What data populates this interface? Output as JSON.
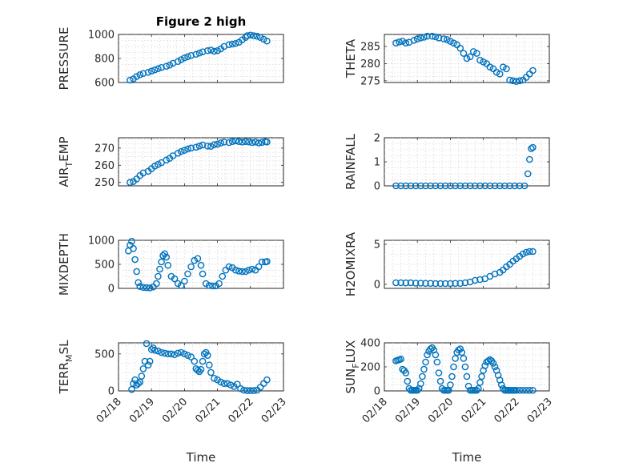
{
  "chart_data": [
    {
      "type": "scatter",
      "id": "pressure",
      "title": "Figure 2 high",
      "ylabel": "PRESSURE",
      "ylabel_sub": "",
      "xlabel": "",
      "ylim": [
        600,
        1000
      ],
      "yticks": [
        600,
        800,
        1000
      ],
      "yticklabels": [
        "600",
        "800",
        "1000"
      ],
      "xlim": [
        0,
        5
      ],
      "xticks": [
        0,
        1,
        2,
        3,
        4,
        5
      ],
      "xticklabels": [],
      "series": [
        {
          "x": [
            0.35,
            0.45,
            0.55,
            0.65,
            0.75,
            0.9,
            1.0,
            1.1,
            1.2,
            1.3,
            1.45,
            1.55,
            1.65,
            1.8,
            1.9,
            2.0,
            2.1,
            2.2,
            2.35,
            2.45,
            2.55,
            2.7,
            2.8,
            2.9,
            3.0,
            3.1,
            3.2,
            3.35,
            3.45,
            3.55,
            3.65,
            3.75,
            3.85,
            3.9,
            4.0,
            4.1,
            4.2,
            4.3,
            4.4,
            4.5
          ],
          "y": [
            620,
            630,
            650,
            665,
            675,
            685,
            695,
            705,
            715,
            725,
            735,
            745,
            760,
            775,
            790,
            805,
            815,
            825,
            835,
            845,
            855,
            865,
            870,
            860,
            865,
            880,
            900,
            915,
            920,
            925,
            935,
            955,
            975,
            990,
            995,
            990,
            985,
            975,
            960,
            945
          ]
        }
      ]
    },
    {
      "type": "scatter",
      "id": "theta",
      "title": "",
      "ylabel": "THETA",
      "ylabel_sub": "",
      "xlabel": "",
      "ylim": [
        274.5,
        288.5
      ],
      "yticks": [
        275,
        280,
        285
      ],
      "yticklabels": [
        "275",
        "280",
        "285"
      ],
      "xlim": [
        0,
        5
      ],
      "xticks": [
        0,
        1,
        2,
        3,
        4,
        5
      ],
      "xticklabels": [],
      "series": [
        {
          "x": [
            0.35,
            0.45,
            0.55,
            0.65,
            0.75,
            0.9,
            1.0,
            1.1,
            1.2,
            1.3,
            1.45,
            1.55,
            1.65,
            1.8,
            1.9,
            2.0,
            2.1,
            2.2,
            2.3,
            2.4,
            2.5,
            2.6,
            2.7,
            2.8,
            2.9,
            3.0,
            3.1,
            3.2,
            3.3,
            3.4,
            3.5,
            3.6,
            3.7,
            3.8,
            3.9,
            4.0,
            4.1,
            4.2,
            4.3,
            4.4,
            4.5
          ],
          "y": [
            286,
            286.3,
            286.5,
            286,
            286.2,
            286.8,
            287.2,
            287.5,
            287.7,
            288,
            288,
            287.8,
            287.5,
            287.2,
            287,
            286.5,
            286,
            285.5,
            284.5,
            283,
            281.5,
            282,
            283.5,
            283,
            281,
            280.5,
            280,
            279,
            278.5,
            277.5,
            277,
            279,
            278.5,
            275.2,
            275,
            274.8,
            275,
            275.2,
            276,
            277,
            278
          ]
        }
      ]
    },
    {
      "type": "scatter",
      "id": "air-temp",
      "title": "",
      "ylabel": "AIR",
      "ylabel_sub": "T",
      "ylabel_tail": "EMP",
      "xlabel": "",
      "ylim": [
        248,
        276
      ],
      "yticks": [
        250,
        260,
        270
      ],
      "yticklabels": [
        "250",
        "260",
        "270"
      ],
      "xlim": [
        0,
        5
      ],
      "xticks": [
        0,
        1,
        2,
        3,
        4,
        5
      ],
      "xticklabels": [],
      "series": [
        {
          "x": [
            0.35,
            0.45,
            0.55,
            0.65,
            0.75,
            0.9,
            1.0,
            1.1,
            1.2,
            1.3,
            1.45,
            1.55,
            1.65,
            1.8,
            1.9,
            2.0,
            2.1,
            2.2,
            2.35,
            2.45,
            2.55,
            2.7,
            2.8,
            2.9,
            3.0,
            3.1,
            3.2,
            3.35,
            3.45,
            3.55,
            3.65,
            3.75,
            3.85,
            3.95,
            4.05,
            4.15,
            4.25,
            4.35,
            4.45,
            4.5
          ],
          "y": [
            250,
            250.5,
            252,
            254,
            255.5,
            256.5,
            258,
            259.5,
            260.5,
            261.5,
            263,
            264,
            265.5,
            267,
            268,
            268.7,
            269.5,
            270,
            270.5,
            271.2,
            271.8,
            271.2,
            271,
            272,
            272.3,
            273,
            273.5,
            273.2,
            273.8,
            274.2,
            273.8,
            273.5,
            273.8,
            273.6,
            273.2,
            273.5,
            273,
            273.3,
            273.8,
            273.5
          ]
        }
      ]
    },
    {
      "type": "scatter",
      "id": "rainfall",
      "title": "",
      "ylabel": "RAINFALL",
      "ylabel_sub": "",
      "xlabel": "",
      "ylim": [
        0,
        2
      ],
      "yticks": [
        0,
        1,
        2
      ],
      "yticklabels": [
        "0",
        "1",
        "2"
      ],
      "xlim": [
        0,
        5
      ],
      "xticks": [
        0,
        1,
        2,
        3,
        4,
        5
      ],
      "xticklabels": [],
      "series": [
        {
          "x": [
            0.35,
            0.5,
            0.65,
            0.8,
            0.95,
            1.1,
            1.25,
            1.4,
            1.55,
            1.7,
            1.85,
            2.0,
            2.15,
            2.3,
            2.45,
            2.6,
            2.75,
            2.9,
            3.05,
            3.2,
            3.35,
            3.5,
            3.65,
            3.8,
            3.95,
            4.1,
            4.25,
            4.35,
            4.4,
            4.45,
            4.5
          ],
          "y": [
            0,
            0,
            0,
            0,
            0,
            0,
            0,
            0,
            0,
            0,
            0,
            0,
            0,
            0,
            0,
            0,
            0,
            0,
            0,
            0,
            0,
            0,
            0,
            0,
            0,
            0,
            0,
            0.5,
            1.1,
            1.55,
            1.6
          ]
        }
      ]
    },
    {
      "type": "scatter",
      "id": "mixdepth",
      "title": "",
      "ylabel": "MIXDEPTH",
      "ylabel_sub": "",
      "xlabel": "",
      "ylim": [
        0,
        1000
      ],
      "yticks": [
        0,
        500,
        1000
      ],
      "yticklabels": [
        "0",
        "500",
        "1000"
      ],
      "xlim": [
        0,
        5
      ],
      "xticks": [
        0,
        1,
        2,
        3,
        4,
        5
      ],
      "xticklabels": [],
      "series": [
        {
          "x": [
            0.3,
            0.35,
            0.4,
            0.45,
            0.5,
            0.55,
            0.6,
            0.65,
            0.75,
            0.85,
            0.95,
            1.05,
            1.15,
            1.2,
            1.25,
            1.3,
            1.35,
            1.4,
            1.45,
            1.5,
            1.6,
            1.7,
            1.8,
            1.9,
            2.0,
            2.1,
            2.2,
            2.3,
            2.4,
            2.5,
            2.55,
            2.65,
            2.75,
            2.85,
            2.95,
            3.05,
            3.15,
            3.25,
            3.35,
            3.45,
            3.55,
            3.65,
            3.75,
            3.85,
            3.95,
            4.05,
            4.15,
            4.25,
            4.35,
            4.45,
            4.5
          ],
          "y": [
            780,
            900,
            980,
            830,
            600,
            350,
            120,
            40,
            20,
            15,
            10,
            30,
            100,
            250,
            400,
            550,
            680,
            720,
            650,
            480,
            250,
            200,
            100,
            60,
            150,
            300,
            450,
            580,
            620,
            480,
            300,
            100,
            60,
            50,
            50,
            100,
            250,
            380,
            450,
            430,
            380,
            360,
            350,
            350,
            380,
            400,
            380,
            450,
            550,
            550,
            560
          ]
        }
      ]
    },
    {
      "type": "scatter",
      "id": "h2omixra",
      "title": "",
      "ylabel": "H2OMIXRA",
      "ylabel_sub": "",
      "xlabel": "",
      "ylim": [
        -0.5,
        5.5
      ],
      "yticks": [
        0,
        5
      ],
      "yticklabels": [
        "0",
        "5"
      ],
      "xlim": [
        0,
        5
      ],
      "xticks": [
        0,
        1,
        2,
        3,
        4,
        5
      ],
      "xticklabels": [],
      "series": [
        {
          "x": [
            0.35,
            0.5,
            0.65,
            0.8,
            0.95,
            1.1,
            1.25,
            1.4,
            1.55,
            1.7,
            1.85,
            2.0,
            2.15,
            2.3,
            2.45,
            2.6,
            2.75,
            2.9,
            3.05,
            3.2,
            3.35,
            3.5,
            3.6,
            3.7,
            3.8,
            3.9,
            4.0,
            4.1,
            4.2,
            4.3,
            4.4,
            4.5
          ],
          "y": [
            0.2,
            0.2,
            0.18,
            0.2,
            0.15,
            0.15,
            0.12,
            0.12,
            0.1,
            0.1,
            0.1,
            0.1,
            0.12,
            0.12,
            0.2,
            0.3,
            0.5,
            0.6,
            0.7,
            1.0,
            1.3,
            1.5,
            1.8,
            2.2,
            2.5,
            2.9,
            3.2,
            3.5,
            3.8,
            4.0,
            4.1,
            4.1
          ]
        }
      ]
    },
    {
      "type": "scatter",
      "id": "terr-msl",
      "title": "",
      "ylabel": "TERR",
      "ylabel_sub": "M",
      "ylabel_tail": "SL",
      "xlabel": "Time",
      "ylim": [
        0,
        650
      ],
      "yticks": [
        0,
        500
      ],
      "yticklabels": [
        "0",
        "500"
      ],
      "xlim": [
        0,
        5
      ],
      "xticks": [
        0,
        1,
        2,
        3,
        4,
        5
      ],
      "xticklabels": [
        "02/18",
        "02/19",
        "02/20",
        "02/21",
        "02/22",
        "02/23"
      ],
      "series": [
        {
          "x": [
            0.4,
            0.45,
            0.5,
            0.55,
            0.6,
            0.65,
            0.7,
            0.75,
            0.8,
            0.85,
            0.9,
            0.95,
            1.0,
            1.05,
            1.1,
            1.2,
            1.3,
            1.4,
            1.5,
            1.6,
            1.7,
            1.8,
            1.9,
            2.0,
            2.1,
            2.2,
            2.3,
            2.35,
            2.4,
            2.45,
            2.5,
            2.55,
            2.6,
            2.65,
            2.7,
            2.75,
            2.8,
            2.9,
            3.0,
            3.1,
            3.2,
            3.3,
            3.4,
            3.5,
            3.6,
            3.7,
            3.8,
            3.9,
            4.0,
            4.1,
            4.2,
            4.3,
            4.4,
            4.5
          ],
          "y": [
            20,
            100,
            150,
            80,
            100,
            120,
            200,
            300,
            400,
            640,
            350,
            400,
            560,
            580,
            550,
            540,
            520,
            510,
            500,
            500,
            490,
            510,
            520,
            500,
            480,
            460,
            400,
            300,
            280,
            260,
            290,
            400,
            500,
            520,
            480,
            350,
            250,
            170,
            150,
            120,
            100,
            100,
            80,
            60,
            90,
            30,
            10,
            5,
            5,
            5,
            10,
            50,
            100,
            150
          ]
        }
      ]
    },
    {
      "type": "scatter",
      "id": "sun-flux",
      "title": "",
      "ylabel": "SUN",
      "ylabel_sub": "F",
      "ylabel_tail": "LUX",
      "xlabel": "Time",
      "ylim": [
        0,
        400
      ],
      "yticks": [
        0,
        200,
        400
      ],
      "yticklabels": [
        "0",
        "200",
        "400"
      ],
      "xlim": [
        0,
        5
      ],
      "xticks": [
        0,
        1,
        2,
        3,
        4,
        5
      ],
      "xticklabels": [
        "02/18",
        "02/19",
        "02/20",
        "02/21",
        "02/22",
        "02/23"
      ],
      "series": [
        {
          "x": [
            0.35,
            0.4,
            0.45,
            0.5,
            0.55,
            0.6,
            0.65,
            0.7,
            0.75,
            0.8,
            0.85,
            0.9,
            0.95,
            1.0,
            1.05,
            1.1,
            1.15,
            1.2,
            1.25,
            1.3,
            1.35,
            1.4,
            1.45,
            1.5,
            1.55,
            1.6,
            1.65,
            1.7,
            1.75,
            1.8,
            1.85,
            1.9,
            1.95,
            2.0,
            2.05,
            2.1,
            2.15,
            2.2,
            2.25,
            2.3,
            2.35,
            2.4,
            2.45,
            2.5,
            2.55,
            2.6,
            2.65,
            2.7,
            2.75,
            2.8,
            2.85,
            2.9,
            2.95,
            3.0,
            3.05,
            3.1,
            3.15,
            3.2,
            3.25,
            3.3,
            3.35,
            3.4,
            3.45,
            3.5,
            3.55,
            3.6,
            3.65,
            3.7,
            3.75,
            3.8,
            3.85,
            3.9,
            3.95,
            4.0,
            4.1,
            4.2,
            4.3,
            4.4,
            4.5
          ],
          "y": [
            250,
            255,
            260,
            265,
            180,
            170,
            150,
            80,
            20,
            5,
            5,
            5,
            5,
            5,
            20,
            60,
            120,
            180,
            240,
            300,
            330,
            350,
            360,
            340,
            300,
            240,
            150,
            80,
            20,
            5,
            5,
            5,
            5,
            50,
            120,
            200,
            270,
            320,
            340,
            350,
            320,
            270,
            200,
            120,
            40,
            5,
            5,
            5,
            5,
            5,
            20,
            70,
            120,
            170,
            210,
            240,
            250,
            260,
            250,
            230,
            200,
            170,
            130,
            90,
            50,
            20,
            5,
            5,
            5,
            5,
            5,
            5,
            5,
            5,
            5,
            5,
            5,
            5,
            5
          ]
        }
      ]
    }
  ],
  "colors": {
    "marker": "#0072BD",
    "axis": "#262626",
    "grid": "#d9d9d9"
  }
}
